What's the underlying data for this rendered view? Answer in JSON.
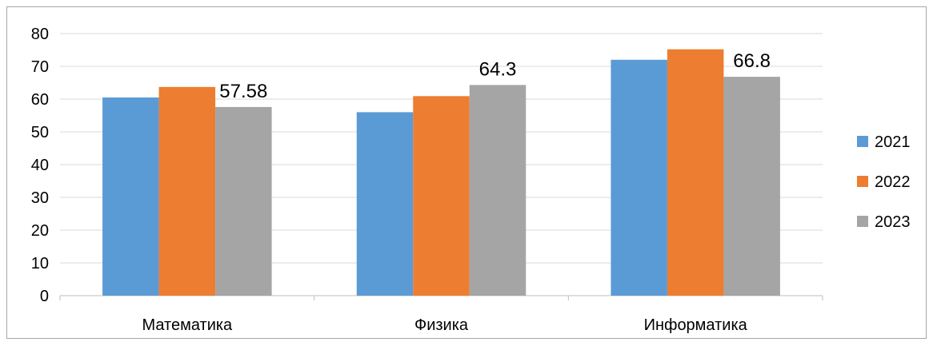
{
  "chart_data": {
    "type": "bar",
    "categories": [
      "Математика",
      "Физика",
      "Информатика"
    ],
    "series": [
      {
        "name": "2021",
        "values": [
          60.5,
          56,
          72
        ],
        "color": "#5b9bd5"
      },
      {
        "name": "2022",
        "values": [
          63.7,
          60.9,
          75.2
        ],
        "color": "#ed7d31"
      },
      {
        "name": "2023",
        "values": [
          57.58,
          64.3,
          66.8
        ],
        "color": "#a5a5a5"
      }
    ],
    "data_labels": [
      {
        "series": 2,
        "category": 0,
        "text": "57.58"
      },
      {
        "series": 2,
        "category": 1,
        "text": "64.3"
      },
      {
        "series": 2,
        "category": 2,
        "text": "66.8"
      }
    ],
    "yticks": [
      "0",
      "10",
      "20",
      "30",
      "40",
      "50",
      "60",
      "70",
      "80"
    ],
    "ylim": [
      0,
      80
    ],
    "grid": true,
    "legend_position": "right",
    "title": "",
    "xlabel": "",
    "ylabel": ""
  }
}
